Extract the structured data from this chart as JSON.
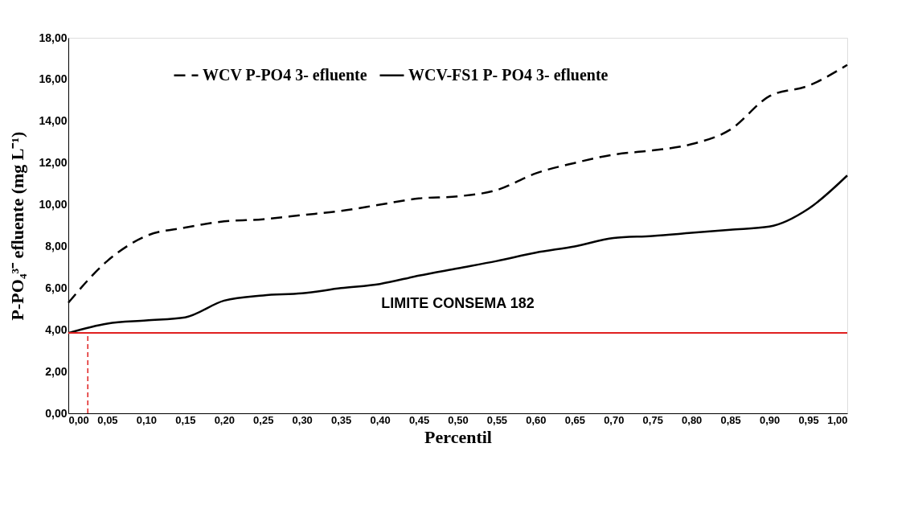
{
  "chart_data": {
    "type": "line",
    "xlabel": "Percentil",
    "ylabel": "P-PO₄³⁻ efluente (mg L⁻¹)",
    "x": [
      0,
      0.05,
      0.1,
      0.15,
      0.2,
      0.25,
      0.3,
      0.35,
      0.4,
      0.45,
      0.5,
      0.55,
      0.6,
      0.65,
      0.7,
      0.75,
      0.8,
      0.85,
      0.9,
      0.95,
      1.0
    ],
    "series": [
      {
        "name": "WCV P-PO4 3- efluente",
        "color": "#000000",
        "line_style": "dashed",
        "values": [
          5.3,
          7.3,
          8.5,
          8.9,
          9.2,
          9.3,
          9.5,
          9.7,
          10.0,
          10.3,
          10.4,
          10.7,
          11.5,
          12.0,
          12.4,
          12.6,
          12.9,
          13.6,
          15.2,
          15.7,
          16.7
        ]
      },
      {
        "name": "WCV-FS1 P-  PO4 3- efluente",
        "color": "#000000",
        "line_style": "solid",
        "values": [
          3.85,
          4.3,
          4.45,
          4.6,
          5.4,
          5.65,
          5.75,
          6.0,
          6.2,
          6.6,
          6.95,
          7.3,
          7.7,
          8.0,
          8.4,
          8.5,
          8.65,
          8.8,
          8.95,
          9.8,
          11.4
        ]
      }
    ],
    "ref_lines": [
      {
        "axis": "y",
        "value": 3.85,
        "label": "LIMITE CONSEMA 182",
        "color": "#e02020",
        "line_style": "solid"
      },
      {
        "axis": "x",
        "value": 0.025,
        "color": "#e02020",
        "line_style": "dashed"
      }
    ],
    "xlim": [
      0,
      1
    ],
    "xticks": [
      {
        "value": 0,
        "label": "0,00"
      },
      {
        "value": 0.05,
        "label": "0,05"
      },
      {
        "value": 0.1,
        "label": "0,10"
      },
      {
        "value": 0.15,
        "label": "0,15"
      },
      {
        "value": 0.2,
        "label": "0,20"
      },
      {
        "value": 0.25,
        "label": "0,25"
      },
      {
        "value": 0.3,
        "label": "0,30"
      },
      {
        "value": 0.35,
        "label": "0,35"
      },
      {
        "value": 0.4,
        "label": "0,40"
      },
      {
        "value": 0.45,
        "label": "0,45"
      },
      {
        "value": 0.5,
        "label": "0,50"
      },
      {
        "value": 0.55,
        "label": "0,55"
      },
      {
        "value": 0.6,
        "label": "0,60"
      },
      {
        "value": 0.65,
        "label": "0,65"
      },
      {
        "value": 0.7,
        "label": "0,70"
      },
      {
        "value": 0.75,
        "label": "0,75"
      },
      {
        "value": 0.8,
        "label": "0,80"
      },
      {
        "value": 0.85,
        "label": "0,85"
      },
      {
        "value": 0.9,
        "label": "0,90"
      },
      {
        "value": 0.95,
        "label": "0,95"
      },
      {
        "value": 1.0,
        "label": "1,00"
      }
    ],
    "ylim": [
      0,
      18
    ],
    "yticks": [
      {
        "value": 0,
        "label": "0,00"
      },
      {
        "value": 2,
        "label": "2,00"
      },
      {
        "value": 4,
        "label": "4,00"
      },
      {
        "value": 6,
        "label": "6,00"
      },
      {
        "value": 8,
        "label": "8,00"
      },
      {
        "value": 10,
        "label": "10,00"
      },
      {
        "value": 12,
        "label": "12,00"
      },
      {
        "value": 14,
        "label": "14,00"
      },
      {
        "value": 16,
        "label": "16,00"
      },
      {
        "value": 18,
        "label": "18,00"
      }
    ],
    "grid": false,
    "legend": "top",
    "marker": "none"
  }
}
